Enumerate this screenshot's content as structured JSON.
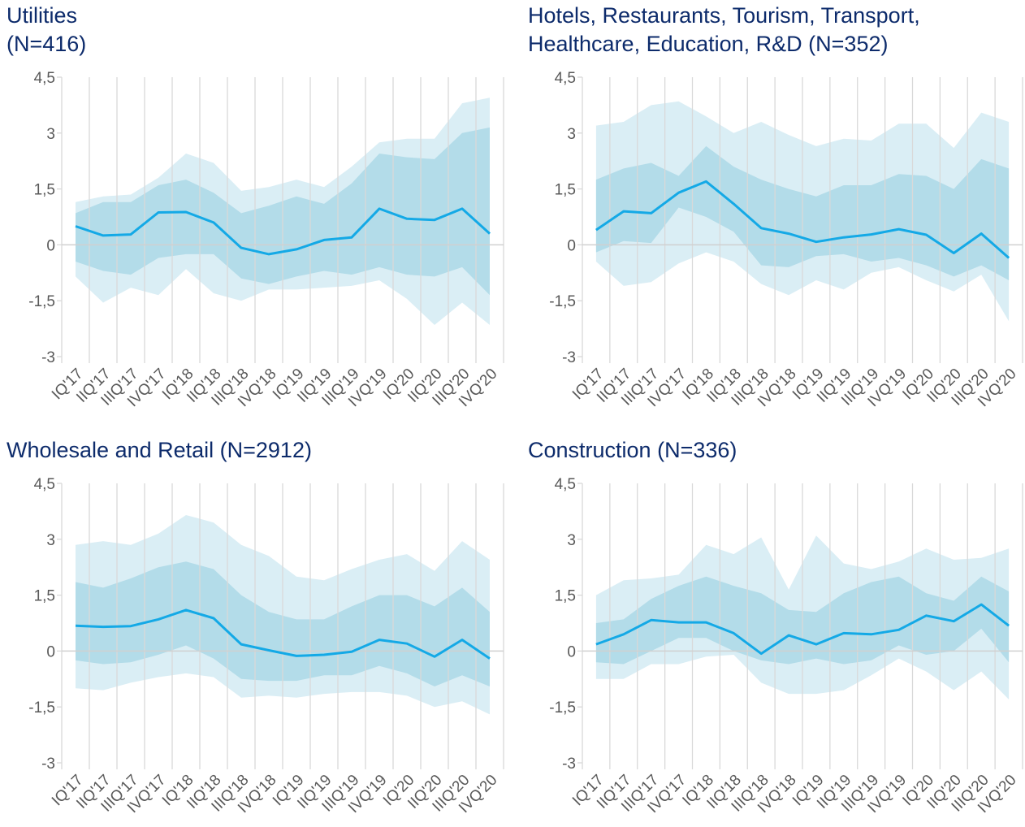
{
  "chart_data": [
    {
      "type": "band-line",
      "title": [
        "Utilities",
        "(N=416)"
      ],
      "categories": [
        "IQ'17",
        "IIQ'17",
        "IIIQ'17",
        "IVQ'17",
        "IQ'18",
        "IIQ'18",
        "IIIQ'18",
        "IVQ'18",
        "IQ'19",
        "IIQ'19",
        "IIIQ'19",
        "IVQ'19",
        "IQ'20",
        "IIQ'20",
        "IIIQ'20",
        "IVQ'20"
      ],
      "bands": [
        {
          "color": "#daeef5",
          "upper": [
            1.15,
            1.3,
            1.35,
            1.8,
            2.45,
            2.2,
            1.45,
            1.55,
            1.75,
            1.55,
            2.1,
            2.75,
            2.85,
            2.85,
            3.8,
            3.95
          ],
          "lower": [
            -0.85,
            -1.55,
            -1.15,
            -1.35,
            -0.65,
            -1.3,
            -1.5,
            -1.2,
            -1.2,
            -1.15,
            -1.1,
            -0.95,
            -1.45,
            -2.15,
            -1.55,
            -2.15
          ]
        },
        {
          "color": "#b3dce9",
          "upper": [
            0.85,
            1.15,
            1.15,
            1.6,
            1.75,
            1.4,
            0.85,
            1.05,
            1.3,
            1.1,
            1.65,
            2.45,
            2.35,
            2.3,
            3.0,
            3.15
          ],
          "lower": [
            -0.45,
            -0.7,
            -0.8,
            -0.35,
            -0.25,
            -0.25,
            -0.9,
            -1.05,
            -0.85,
            -0.7,
            -0.8,
            -0.6,
            -0.8,
            -0.85,
            -0.6,
            -1.35
          ]
        }
      ],
      "series": [
        {
          "color": "#14a9e6",
          "values": [
            0.5,
            0.25,
            0.28,
            0.87,
            0.88,
            0.6,
            -0.08,
            -0.25,
            -0.12,
            0.13,
            0.2,
            0.97,
            0.7,
            0.67,
            0.97,
            0.3
          ]
        }
      ],
      "ylim": [
        -3,
        4.5
      ],
      "yticks": [
        {
          "value": 4.5,
          "label": "4,5"
        },
        3,
        {
          "value": 1.5,
          "label": "1,5"
        },
        0,
        {
          "value": -1.5,
          "label": "-1,5"
        },
        -3
      ]
    },
    {
      "type": "band-line",
      "title": [
        "Hotels, Restaurants, Tourism, Transport,",
        "Healthcare, Education, R&D (N=352)"
      ],
      "categories": [
        "IQ'17",
        "IIQ'17",
        "IIIQ'17",
        "IVQ'17",
        "IQ'18",
        "IIQ'18",
        "IIIQ'18",
        "IVQ'18",
        "IQ'19",
        "IIQ'19",
        "IIIQ'19",
        "IVQ'19",
        "IQ'20",
        "IIQ'20",
        "IIIQ'20",
        "IVQ'20"
      ],
      "bands": [
        {
          "color": "#daeef5",
          "upper": [
            3.2,
            3.3,
            3.75,
            3.85,
            3.45,
            3.0,
            3.3,
            2.95,
            2.65,
            2.85,
            2.8,
            3.25,
            3.25,
            2.6,
            3.55,
            3.3
          ],
          "lower": [
            -0.45,
            -1.1,
            -1.0,
            -0.5,
            -0.2,
            -0.45,
            -1.05,
            -1.35,
            -0.95,
            -1.2,
            -0.75,
            -0.6,
            -0.95,
            -1.25,
            -0.8,
            -2.05
          ]
        },
        {
          "color": "#b3dce9",
          "upper": [
            1.75,
            2.05,
            2.2,
            1.85,
            2.65,
            2.1,
            1.75,
            1.5,
            1.3,
            1.6,
            1.6,
            1.9,
            1.85,
            1.5,
            2.3,
            2.05
          ],
          "lower": [
            -0.2,
            0.1,
            0.05,
            1.0,
            0.75,
            0.35,
            -0.55,
            -0.6,
            -0.3,
            -0.25,
            -0.45,
            -0.35,
            -0.55,
            -0.85,
            -0.55,
            -0.95
          ]
        }
      ],
      "series": [
        {
          "color": "#14a9e6",
          "values": [
            0.4,
            0.9,
            0.85,
            1.4,
            1.7,
            1.1,
            0.45,
            0.3,
            0.08,
            0.2,
            0.28,
            0.42,
            0.27,
            -0.22,
            0.3,
            -0.35
          ]
        }
      ],
      "ylim": [
        -3,
        4.5
      ],
      "yticks": [
        {
          "value": 4.5,
          "label": "4,5"
        },
        3,
        {
          "value": 1.5,
          "label": "1,5"
        },
        0,
        {
          "value": -1.5,
          "label": "-1,5"
        },
        -3
      ]
    },
    {
      "type": "band-line",
      "title": [
        "Wholesale and Retail (N=2912)"
      ],
      "categories": [
        "IQ'17",
        "IIQ'17",
        "IIIQ'17",
        "IVQ'17",
        "IQ'18",
        "IIQ'18",
        "IIIQ'18",
        "IVQ'18",
        "IQ'19",
        "IIQ'19",
        "IIIQ'19",
        "IVQ'19",
        "IQ'20",
        "IIQ'20",
        "IIIQ'20",
        "IVQ'20"
      ],
      "bands": [
        {
          "color": "#daeef5",
          "upper": [
            2.85,
            2.95,
            2.85,
            3.15,
            3.65,
            3.45,
            2.85,
            2.55,
            2.0,
            1.9,
            2.2,
            2.45,
            2.6,
            2.15,
            2.95,
            2.45
          ],
          "lower": [
            -1.0,
            -1.05,
            -0.85,
            -0.7,
            -0.6,
            -0.7,
            -1.25,
            -1.2,
            -1.25,
            -1.15,
            -1.1,
            -1.1,
            -1.2,
            -1.5,
            -1.35,
            -1.7
          ]
        },
        {
          "color": "#b3dce9",
          "upper": [
            1.85,
            1.7,
            1.95,
            2.25,
            2.4,
            2.2,
            1.5,
            1.05,
            0.85,
            0.85,
            1.2,
            1.5,
            1.5,
            1.2,
            1.7,
            1.05
          ],
          "lower": [
            -0.25,
            -0.35,
            -0.3,
            -0.1,
            0.15,
            -0.2,
            -0.75,
            -0.8,
            -0.8,
            -0.65,
            -0.65,
            -0.4,
            -0.6,
            -0.95,
            -0.65,
            -0.95
          ]
        }
      ],
      "series": [
        {
          "color": "#14a9e6",
          "values": [
            0.68,
            0.65,
            0.67,
            0.85,
            1.1,
            0.88,
            0.18,
            0.02,
            -0.13,
            -0.1,
            -0.02,
            0.3,
            0.2,
            -0.15,
            0.3,
            -0.2
          ]
        }
      ],
      "ylim": [
        -3,
        4.5
      ],
      "yticks": [
        {
          "value": 4.5,
          "label": "4,5"
        },
        3,
        {
          "value": 1.5,
          "label": "1,5"
        },
        0,
        {
          "value": -1.5,
          "label": "-1,5"
        },
        -3
      ]
    },
    {
      "type": "band-line",
      "title": [
        "Construction (N=336)"
      ],
      "categories": [
        "IQ'17",
        "IIQ'17",
        "IIIQ'17",
        "IVQ'17",
        "IQ'18",
        "IIQ'18",
        "IIIQ'18",
        "IVQ'18",
        "IQ'19",
        "IIQ'19",
        "IIIQ'19",
        "IVQ'19",
        "IQ'20",
        "IIQ'20",
        "IIIQ'20",
        "IVQ'20"
      ],
      "bands": [
        {
          "color": "#daeef5",
          "upper": [
            1.5,
            1.9,
            1.95,
            2.05,
            2.85,
            2.6,
            3.05,
            1.65,
            3.1,
            2.35,
            2.2,
            2.4,
            2.75,
            2.45,
            2.5,
            2.75
          ],
          "lower": [
            -0.75,
            -0.75,
            -0.35,
            -0.35,
            -0.15,
            -0.1,
            -0.85,
            -1.15,
            -1.15,
            -1.05,
            -0.65,
            -0.2,
            -0.55,
            -1.05,
            -0.55,
            -1.3
          ]
        },
        {
          "color": "#b3dce9",
          "upper": [
            0.75,
            0.85,
            1.4,
            1.75,
            2.0,
            1.75,
            1.55,
            1.1,
            1.05,
            1.55,
            1.85,
            2.0,
            1.55,
            1.35,
            2.0,
            1.6
          ],
          "lower": [
            -0.3,
            -0.35,
            0.0,
            0.35,
            0.35,
            0.0,
            -0.25,
            -0.35,
            -0.2,
            -0.35,
            -0.25,
            0.15,
            -0.1,
            0.0,
            0.6,
            -0.3
          ]
        }
      ],
      "series": [
        {
          "color": "#14a9e6",
          "values": [
            0.18,
            0.45,
            0.83,
            0.77,
            0.77,
            0.48,
            -0.07,
            0.42,
            0.18,
            0.48,
            0.45,
            0.57,
            0.95,
            0.8,
            1.25,
            0.68
          ]
        }
      ],
      "ylim": [
        -3,
        4.5
      ],
      "yticks": [
        {
          "value": 4.5,
          "label": "4,5"
        },
        3,
        {
          "value": 1.5,
          "label": "1,5"
        },
        0,
        {
          "value": -1.5,
          "label": "-1,5"
        },
        -3
      ]
    }
  ]
}
